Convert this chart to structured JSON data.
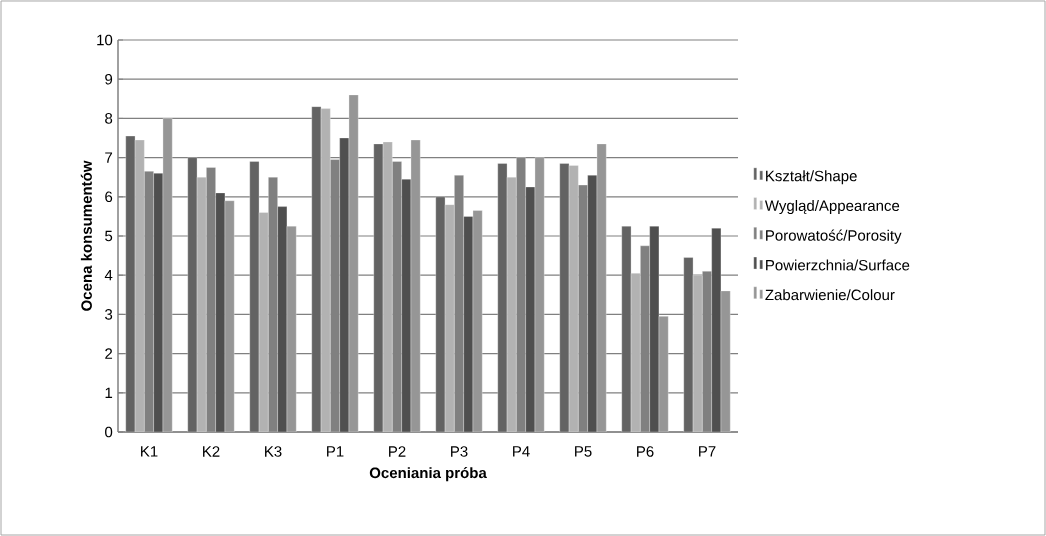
{
  "chart_data": {
    "type": "bar",
    "xlabel": "Oceniania próba",
    "ylabel": "Ocena konsumentów",
    "categories": [
      "K1",
      "K2",
      "K3",
      "P1",
      "P2",
      "P3",
      "P4",
      "P5",
      "P6",
      "P7"
    ],
    "series": [
      {
        "name": "Kształt/Shape",
        "color": "#636363",
        "values": [
          7.55,
          7.0,
          6.9,
          8.3,
          7.35,
          6.0,
          6.85,
          6.85,
          5.25,
          4.45
        ]
      },
      {
        "name": "Wygląd/Appearance",
        "color": "#b2b2b2",
        "values": [
          7.45,
          6.5,
          5.6,
          8.25,
          7.4,
          5.8,
          6.5,
          6.8,
          4.05,
          4.0
        ]
      },
      {
        "name": "Porowatość/Porosity",
        "color": "#808080",
        "values": [
          6.65,
          6.75,
          6.5,
          6.95,
          6.9,
          6.55,
          7.0,
          6.3,
          4.75,
          4.1
        ]
      },
      {
        "name": "Powierzchnia/Surface",
        "color": "#4f4f4f",
        "values": [
          6.6,
          6.1,
          5.75,
          7.5,
          6.45,
          5.5,
          6.25,
          6.55,
          5.25,
          5.2
        ]
      },
      {
        "name": "Zabarwienie/Colour",
        "color": "#969696",
        "values": [
          8.0,
          5.9,
          5.25,
          8.6,
          7.45,
          5.65,
          7.0,
          7.35,
          2.95,
          3.6
        ]
      }
    ],
    "ylim": [
      0,
      10
    ],
    "yticks": [
      0,
      1,
      2,
      3,
      4,
      5,
      6,
      7,
      8,
      9,
      10
    ],
    "grid": "y",
    "legend": "right"
  }
}
